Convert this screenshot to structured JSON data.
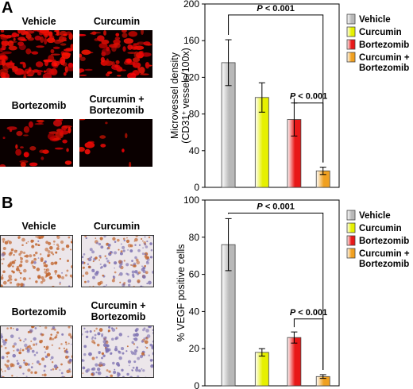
{
  "panels": [
    {
      "letter": "A",
      "image_labels": [
        "Vehicle",
        "Curcumin",
        "Bortezomib",
        "Curcumin +\nBortezomib"
      ],
      "image_style": "fluorescence"
    },
    {
      "letter": "B",
      "image_labels": [
        "Vehicle",
        "Curcumin",
        "Bortezomib",
        "Curcumin +\nBortezomib"
      ],
      "image_style": "ihc"
    }
  ],
  "chart_data": [
    {
      "type": "bar",
      "categories": [
        "Vehicle",
        "Curcumin",
        "Bortezomib",
        "Curcumin + Bortezomib"
      ],
      "values": [
        136,
        98,
        74,
        18
      ],
      "errors": [
        25,
        16,
        18,
        4
      ],
      "ylabel_line1": "Microvessel density",
      "ylabel_line2_pre": "(CD31",
      "ylabel_line2_sup": "+",
      "ylabel_line2_post": " vessels/100x)",
      "ylim": [
        0,
        200
      ],
      "yticks": [
        "0",
        "40",
        "80",
        "120",
        "160",
        "200"
      ],
      "grid": false,
      "legend_position": "right",
      "legend": [
        "Vehicle",
        "Curcumin",
        "Bortezomib",
        "Curcumin +\nBortezomib"
      ],
      "colors": [
        "#b8b8b8",
        "#e6f000",
        "#e81818",
        "#f0a020"
      ],
      "annotations": [
        {
          "text": "P < 0.001",
          "from": 0,
          "to": 3,
          "level": 188
        },
        {
          "text": "P < 0.001",
          "from": 2,
          "to": 3,
          "level": 92
        }
      ]
    },
    {
      "type": "bar",
      "categories": [
        "Vehicle",
        "Curcumin",
        "Bortezomib",
        "Curcumin + Bortezomib"
      ],
      "values": [
        76,
        18,
        26,
        5
      ],
      "errors": [
        14,
        2,
        3,
        1
      ],
      "ylabel": "% VEGF positive cells",
      "ylim": [
        0,
        100
      ],
      "yticks": [
        "0",
        "20",
        "40",
        "60",
        "80",
        "100"
      ],
      "grid": false,
      "legend_position": "right",
      "legend": [
        "Vehicle",
        "Curcumin",
        "Bortezomib",
        "Curcumin +\nBortezomib"
      ],
      "colors": [
        "#b8b8b8",
        "#e6f000",
        "#e81818",
        "#f0a020"
      ],
      "annotations": [
        {
          "text": "P < 0.001",
          "from": 0,
          "to": 3,
          "level": 93
        },
        {
          "text": "P < 0.001",
          "from": 2,
          "to": 3,
          "level": 36
        }
      ]
    }
  ]
}
